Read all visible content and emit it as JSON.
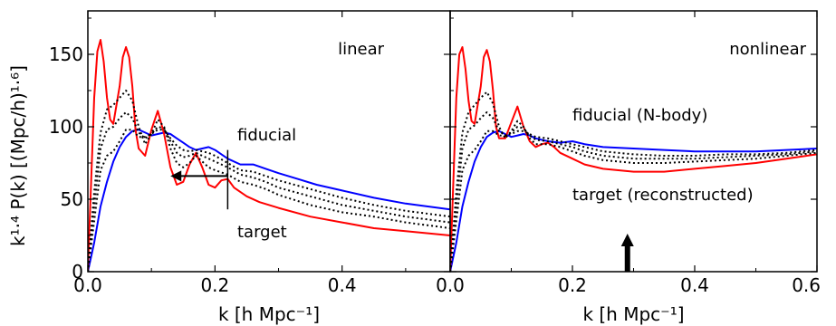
{
  "chart_data": [
    {
      "type": "line",
      "panel_label": "linear",
      "xlabel": "k [h Mpc⁻¹]",
      "ylabel": "k¹·⁴ P(k) [(Mpc/h)¹·⁶]",
      "xlim": [
        0.0,
        0.57
      ],
      "ylim": [
        0,
        180
      ],
      "x_ticks": [
        "0.0",
        "0.2",
        "0.4"
      ],
      "y_ticks": [
        "0",
        "50",
        "100",
        "150"
      ],
      "annotations": [
        {
          "text": "fiducial",
          "color": "#0000ff"
        },
        {
          "text": "target",
          "color": "#ff0000"
        }
      ],
      "marker": {
        "k": 0.22,
        "arrow": "left"
      },
      "series": [
        {
          "color": "#0000ff",
          "style": "solid",
          "x": [
            0.0,
            0.01,
            0.02,
            0.03,
            0.04,
            0.05,
            0.06,
            0.07,
            0.08,
            0.09,
            0.1,
            0.11,
            0.12,
            0.13,
            0.14,
            0.15,
            0.16,
            0.17,
            0.18,
            0.19,
            0.2,
            0.22,
            0.24,
            0.26,
            0.28,
            0.3,
            0.33,
            0.36,
            0.4,
            0.45,
            0.5,
            0.57
          ],
          "y": [
            0,
            20,
            45,
            62,
            76,
            86,
            93,
            97,
            98,
            96,
            94,
            95,
            96,
            95,
            92,
            89,
            86,
            84,
            85,
            86,
            84,
            78,
            74,
            74,
            71,
            68,
            64,
            60,
            56,
            51,
            47,
            43
          ]
        },
        {
          "color": "#ff0000",
          "style": "solid",
          "x": [
            0.0,
            0.005,
            0.01,
            0.015,
            0.02,
            0.025,
            0.03,
            0.035,
            0.04,
            0.05,
            0.055,
            0.06,
            0.065,
            0.07,
            0.075,
            0.08,
            0.09,
            0.1,
            0.11,
            0.12,
            0.13,
            0.14,
            0.15,
            0.16,
            0.17,
            0.18,
            0.19,
            0.2,
            0.21,
            0.22,
            0.23,
            0.25,
            0.27,
            0.3,
            0.35,
            0.4,
            0.45,
            0.5,
            0.57
          ],
          "y": [
            0,
            60,
            120,
            152,
            160,
            145,
            120,
            105,
            102,
            128,
            148,
            155,
            148,
            128,
            98,
            85,
            80,
            98,
            111,
            95,
            72,
            60,
            62,
            74,
            82,
            72,
            60,
            58,
            63,
            64,
            58,
            52,
            48,
            44,
            38,
            34,
            30,
            28,
            25
          ]
        },
        {
          "color": "#000000",
          "style": "dotted",
          "x": [
            0.0,
            0.01,
            0.02,
            0.03,
            0.04,
            0.05,
            0.06,
            0.07,
            0.08,
            0.09,
            0.1,
            0.11,
            0.12,
            0.13,
            0.14,
            0.15,
            0.16,
            0.17,
            0.18,
            0.19,
            0.2,
            0.22,
            0.24,
            0.26,
            0.28,
            0.3,
            0.35,
            0.4,
            0.45,
            0.5,
            0.57
          ],
          "y": [
            0,
            55,
            96,
            112,
            115,
            120,
            125,
            118,
            100,
            88,
            95,
            105,
            100,
            85,
            75,
            72,
            75,
            80,
            76,
            72,
            70,
            67,
            62,
            60,
            57,
            53,
            46,
            41,
            38,
            34,
            30
          ]
        },
        {
          "color": "#000000",
          "style": "dotted",
          "x": [
            0.0,
            0.01,
            0.02,
            0.03,
            0.04,
            0.05,
            0.06,
            0.07,
            0.08,
            0.09,
            0.1,
            0.11,
            0.12,
            0.13,
            0.14,
            0.15,
            0.16,
            0.17,
            0.18,
            0.19,
            0.2,
            0.22,
            0.24,
            0.26,
            0.28,
            0.3,
            0.35,
            0.4,
            0.45,
            0.5,
            0.57
          ],
          "y": [
            0,
            45,
            85,
            98,
            100,
            106,
            110,
            106,
            96,
            92,
            95,
            100,
            99,
            90,
            82,
            79,
            80,
            82,
            80,
            78,
            76,
            72,
            67,
            65,
            62,
            58,
            52,
            46,
            42,
            38,
            34
          ]
        },
        {
          "color": "#000000",
          "style": "dotted",
          "x": [
            0.0,
            0.01,
            0.02,
            0.03,
            0.04,
            0.05,
            0.06,
            0.07,
            0.08,
            0.09,
            0.1,
            0.11,
            0.12,
            0.13,
            0.14,
            0.15,
            0.16,
            0.17,
            0.18,
            0.19,
            0.2,
            0.22,
            0.24,
            0.26,
            0.28,
            0.3,
            0.35,
            0.4,
            0.45,
            0.5,
            0.57
          ],
          "y": [
            0,
            35,
            70,
            80,
            83,
            90,
            98,
            98,
            93,
            93,
            95,
            98,
            98,
            92,
            87,
            84,
            83,
            84,
            83,
            82,
            80,
            75,
            70,
            69,
            66,
            63,
            57,
            51,
            46,
            42,
            38
          ]
        }
      ]
    },
    {
      "type": "line",
      "panel_label": "nonlinear",
      "xlabel": "k [h Mpc⁻¹]",
      "ylabel": "",
      "xlim": [
        0.0,
        0.6
      ],
      "ylim": [
        0,
        180
      ],
      "x_ticks": [
        "0.0",
        "0.2",
        "0.4",
        "0.6"
      ],
      "y_ticks": [],
      "annotations": [
        {
          "text": "fiducial (N-body)",
          "color": "#0000ff"
        },
        {
          "text": "target (reconstructed)",
          "color": "#ff0000"
        }
      ],
      "marker": {
        "k": 0.29,
        "arrow": "up"
      },
      "series": [
        {
          "color": "#0000ff",
          "style": "solid",
          "x": [
            0.0,
            0.01,
            0.02,
            0.03,
            0.04,
            0.05,
            0.06,
            0.07,
            0.08,
            0.09,
            0.1,
            0.11,
            0.12,
            0.13,
            0.14,
            0.16,
            0.18,
            0.2,
            0.22,
            0.25,
            0.3,
            0.35,
            0.4,
            0.45,
            0.5,
            0.55,
            0.6
          ],
          "y": [
            0,
            20,
            45,
            62,
            76,
            86,
            93,
            96,
            97,
            95,
            93,
            94,
            95,
            94,
            92,
            90,
            89,
            90,
            88,
            86,
            85,
            84,
            83,
            83,
            83,
            84,
            85
          ]
        },
        {
          "color": "#ff0000",
          "style": "solid",
          "x": [
            0.0,
            0.005,
            0.01,
            0.015,
            0.02,
            0.025,
            0.03,
            0.035,
            0.04,
            0.05,
            0.055,
            0.06,
            0.065,
            0.07,
            0.075,
            0.08,
            0.09,
            0.1,
            0.11,
            0.12,
            0.13,
            0.14,
            0.15,
            0.16,
            0.17,
            0.18,
            0.2,
            0.22,
            0.25,
            0.3,
            0.35,
            0.4,
            0.45,
            0.5,
            0.55,
            0.6
          ],
          "y": [
            0,
            60,
            120,
            150,
            155,
            140,
            118,
            104,
            102,
            128,
            148,
            153,
            145,
            125,
            100,
            92,
            92,
            103,
            114,
            100,
            90,
            86,
            88,
            89,
            86,
            82,
            78,
            74,
            71,
            69,
            69,
            71,
            73,
            75,
            78,
            81
          ]
        },
        {
          "color": "#000000",
          "style": "dotted",
          "x": [
            0.0,
            0.01,
            0.02,
            0.03,
            0.04,
            0.05,
            0.06,
            0.07,
            0.08,
            0.09,
            0.1,
            0.11,
            0.12,
            0.13,
            0.14,
            0.16,
            0.18,
            0.2,
            0.22,
            0.25,
            0.3,
            0.35,
            0.4,
            0.45,
            0.5,
            0.55,
            0.6
          ],
          "y": [
            0,
            55,
            96,
            110,
            115,
            120,
            124,
            116,
            100,
            92,
            97,
            104,
            100,
            92,
            88,
            88,
            86,
            83,
            80,
            77,
            75,
            75,
            76,
            77,
            78,
            80,
            82
          ]
        },
        {
          "color": "#000000",
          "style": "dotted",
          "x": [
            0.0,
            0.01,
            0.02,
            0.03,
            0.04,
            0.05,
            0.06,
            0.07,
            0.08,
            0.09,
            0.1,
            0.11,
            0.12,
            0.13,
            0.14,
            0.16,
            0.18,
            0.2,
            0.22,
            0.25,
            0.3,
            0.35,
            0.4,
            0.45,
            0.5,
            0.55,
            0.6
          ],
          "y": [
            0,
            45,
            85,
            98,
            101,
            106,
            110,
            106,
            97,
            94,
            96,
            100,
            99,
            94,
            91,
            90,
            88,
            86,
            83,
            80,
            78,
            78,
            78,
            79,
            80,
            81,
            83
          ]
        },
        {
          "color": "#000000",
          "style": "dotted",
          "x": [
            0.0,
            0.01,
            0.02,
            0.03,
            0.04,
            0.05,
            0.06,
            0.07,
            0.08,
            0.09,
            0.1,
            0.11,
            0.12,
            0.13,
            0.14,
            0.16,
            0.18,
            0.2,
            0.22,
            0.25,
            0.3,
            0.35,
            0.4,
            0.45,
            0.5,
            0.55,
            0.6
          ],
          "y": [
            0,
            35,
            70,
            80,
            84,
            90,
            97,
            97,
            94,
            94,
            95,
            97,
            97,
            95,
            93,
            92,
            90,
            88,
            86,
            83,
            81,
            80,
            80,
            81,
            81,
            82,
            84
          ]
        }
      ]
    }
  ]
}
